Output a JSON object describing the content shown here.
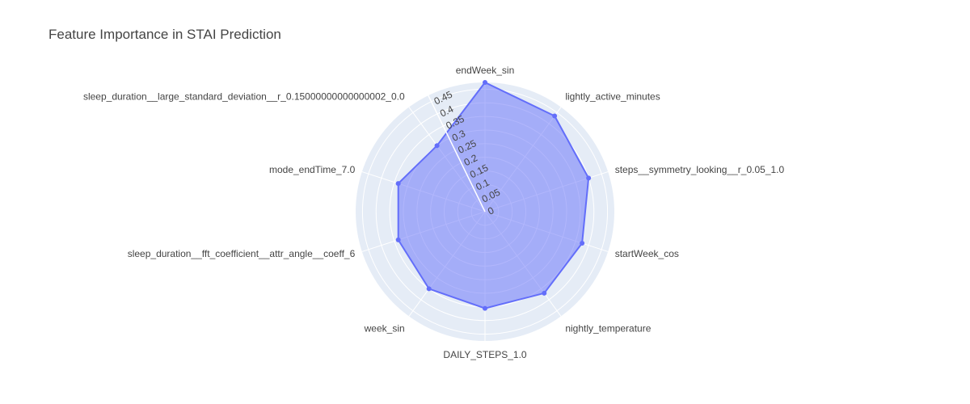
{
  "chart_data": {
    "type": "radar",
    "title": "Feature Importance in STAI Prediction",
    "categories": [
      "endWeek_sin",
      "lightly_active_minutes",
      "steps__symmetry_looking__r_0.05_1.0",
      "startWeek_cos",
      "nightly_temperature",
      "DAILY_STEPS_1.0",
      "week_sin",
      "sleep_duration__fft_coefficient__attr_angle__coeff_6",
      "mode_endTime_7.0",
      "sleep_duration__large_standard_deviation__r_0.15000000000000002_0.0"
    ],
    "values": [
      0.475,
      0.435,
      0.4,
      0.375,
      0.37,
      0.355,
      0.35,
      0.335,
      0.335,
      0.3
    ],
    "radial_range": [
      0,
      0.475
    ],
    "radial_ticks": [
      0,
      0.05,
      0.1,
      0.15,
      0.2,
      0.25,
      0.3,
      0.35,
      0.4,
      0.45
    ],
    "radial_tick_labels": [
      "0",
      "0.05",
      "0.1",
      "0.15",
      "0.2",
      "0.25",
      "0.3",
      "0.35",
      "0.4",
      "0.45"
    ],
    "fill_color": "#636efa",
    "background_color": "#e5ecf6",
    "grid_color": "#ffffff"
  }
}
